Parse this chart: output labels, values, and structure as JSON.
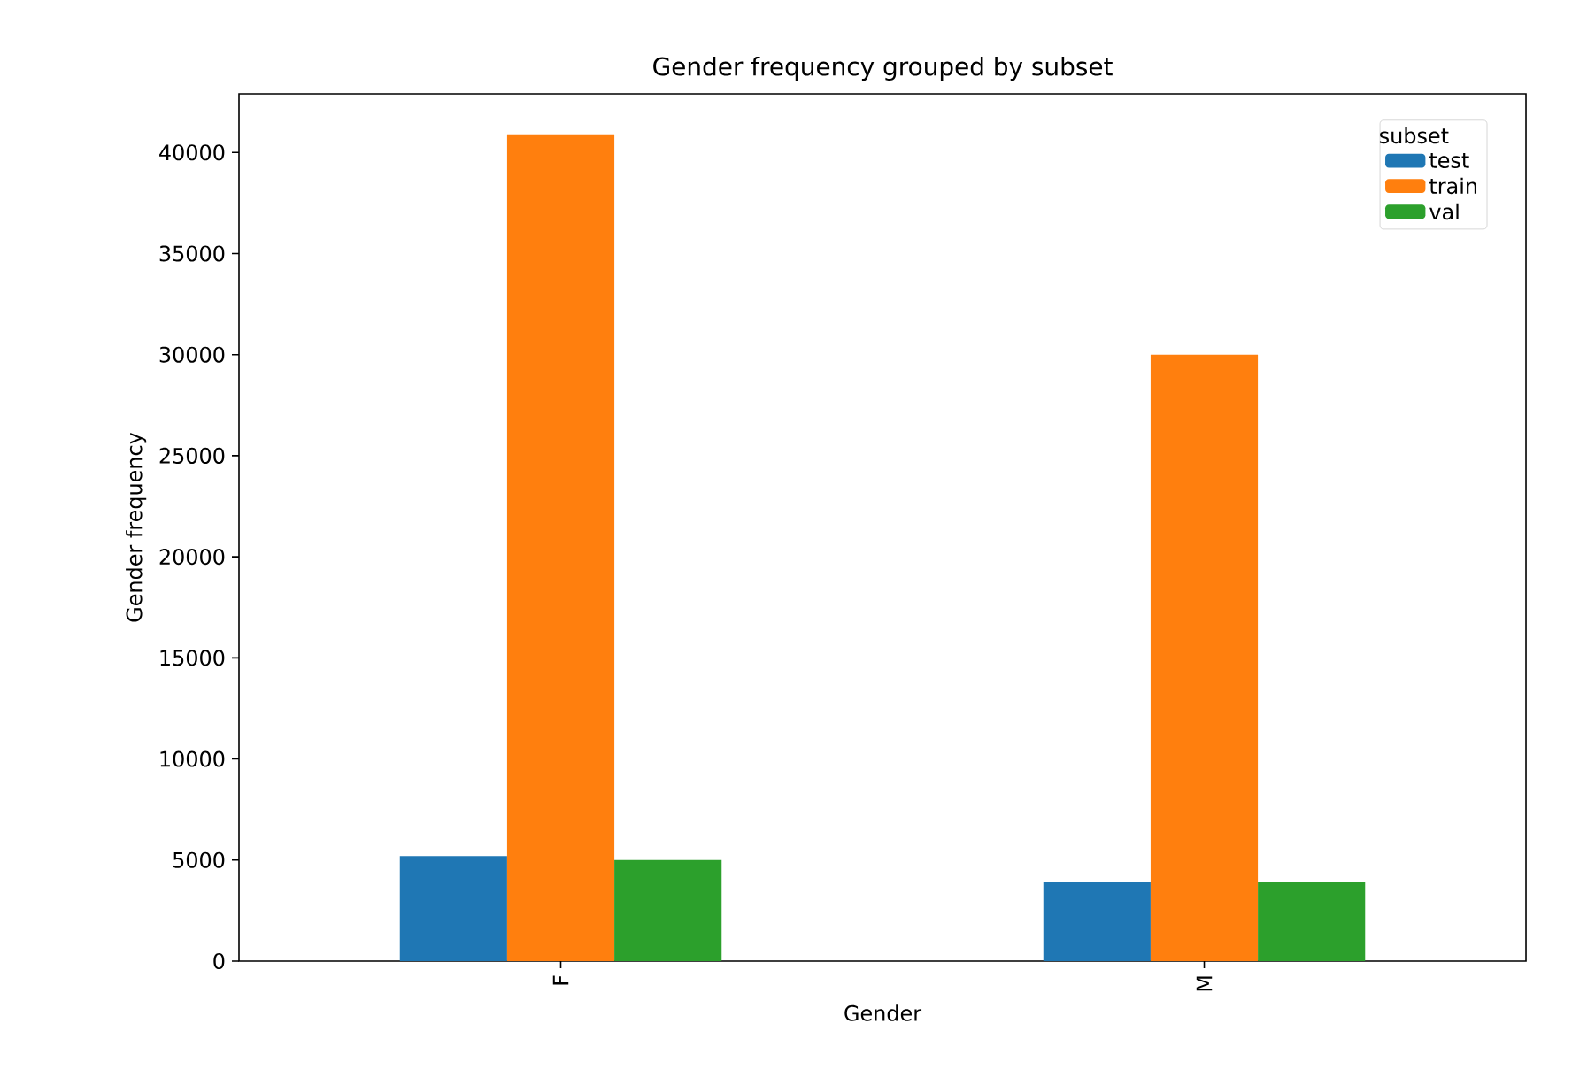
{
  "chart_data": {
    "type": "bar",
    "title": "Gender frequency grouped by subset",
    "xlabel": "Gender",
    "ylabel": "Gender frequency",
    "legend_title": "subset",
    "legend": "top right",
    "categories": [
      "F",
      "M"
    ],
    "series": [
      {
        "name": "test",
        "color": "#1f77b4",
        "values": [
          5200,
          3900
        ]
      },
      {
        "name": "train",
        "color": "#ff7f0e",
        "values": [
          40900,
          30000
        ]
      },
      {
        "name": "val",
        "color": "#2ca02c",
        "values": [
          5000,
          3900
        ]
      }
    ],
    "ylim": [
      0,
      42900
    ],
    "yticks": [
      0,
      5000,
      10000,
      15000,
      20000,
      25000,
      30000,
      35000,
      40000
    ]
  }
}
